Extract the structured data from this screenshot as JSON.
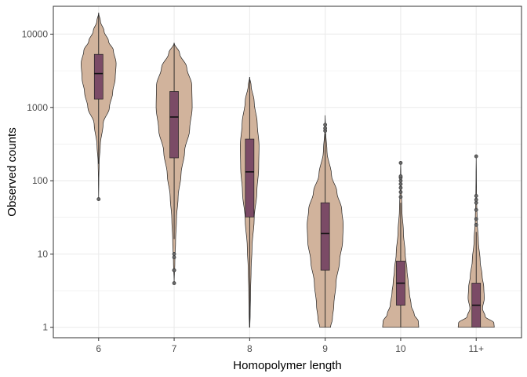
{
  "chart_data": {
    "type": "violin",
    "xlabel": "Homopolymer length",
    "ylabel": "Observed counts",
    "y_scale": "log10",
    "ylim": [
      0.72,
      24000
    ],
    "y_ticks": [
      1,
      10,
      100,
      1000,
      10000
    ],
    "y_tick_labels": [
      "1",
      "10",
      "100",
      "1000",
      "10000"
    ],
    "grid": true,
    "colors": {
      "violin_fill": "#d1b39c",
      "box_fill": "#7b4b66",
      "outline": "#222222",
      "grid": "#ebebeb",
      "panel_border": "#333333"
    },
    "categories": [
      "6",
      "7",
      "8",
      "9",
      "10",
      "11+"
    ],
    "groups": [
      {
        "label": "6",
        "violin": {
          "min": 56,
          "max": 19500,
          "profile": [
            [
              56,
              0.0
            ],
            [
              100,
              0.01
            ],
            [
              180,
              0.03
            ],
            [
              300,
              0.09
            ],
            [
              600,
              0.25
            ],
            [
              1000,
              0.6
            ],
            [
              1600,
              0.78
            ],
            [
              2500,
              0.92
            ],
            [
              4000,
              0.97
            ],
            [
              6000,
              0.82
            ],
            [
              8000,
              0.55
            ],
            [
              11000,
              0.3
            ],
            [
              15000,
              0.1
            ],
            [
              19500,
              0.0
            ]
          ]
        },
        "box": {
          "whisker_low": 170,
          "q1": 1300,
          "median": 2900,
          "q3": 5300,
          "whisker_high": 19500
        },
        "outliers": [
          56
        ]
      },
      {
        "label": "7",
        "violin": {
          "min": 4,
          "max": 7600,
          "profile": [
            [
              4,
              0.0
            ],
            [
              8,
              0.04
            ],
            [
              15,
              0.08
            ],
            [
              30,
              0.13
            ],
            [
              60,
              0.22
            ],
            [
              120,
              0.38
            ],
            [
              250,
              0.58
            ],
            [
              500,
              0.86
            ],
            [
              1000,
              1.0
            ],
            [
              2000,
              0.98
            ],
            [
              3500,
              0.7
            ],
            [
              5500,
              0.3
            ],
            [
              7600,
              0.0
            ]
          ]
        },
        "box": {
          "whisker_low": 16,
          "q1": 205,
          "median": 740,
          "q3": 1650,
          "whisker_high": 7600
        },
        "outliers": [
          4,
          6,
          6,
          9,
          10
        ]
      },
      {
        "label": "8",
        "violin": {
          "min": 1,
          "max": 2600,
          "profile": [
            [
              1,
              0.01
            ],
            [
              1.5,
              0.03
            ],
            [
              3,
              0.05
            ],
            [
              6,
              0.08
            ],
            [
              12,
              0.13
            ],
            [
              30,
              0.25
            ],
            [
              70,
              0.4
            ],
            [
              150,
              0.5
            ],
            [
              300,
              0.52
            ],
            [
              600,
              0.42
            ],
            [
              1200,
              0.25
            ],
            [
              2000,
              0.08
            ],
            [
              2600,
              0.0
            ]
          ]
        },
        "box": {
          "whisker_low": 1,
          "q1": 32,
          "median": 132,
          "q3": 370,
          "whisker_high": 2600
        },
        "outliers": []
      },
      {
        "label": "9",
        "violin": {
          "min": 1,
          "max": 780,
          "profile": [
            [
              1,
              0.3
            ],
            [
              1.3,
              0.4
            ],
            [
              2,
              0.48
            ],
            [
              4,
              0.6
            ],
            [
              8,
              0.8
            ],
            [
              15,
              0.97
            ],
            [
              25,
              1.0
            ],
            [
              40,
              0.92
            ],
            [
              70,
              0.65
            ],
            [
              120,
              0.35
            ],
            [
              250,
              0.1
            ],
            [
              500,
              0.02
            ],
            [
              780,
              0.0
            ]
          ]
        },
        "box": {
          "whisker_low": 1,
          "q1": 6,
          "median": 19,
          "q3": 50,
          "whisker_high": 440
        },
        "outliers": [
          480,
          520,
          580
        ]
      },
      {
        "label": "10",
        "violin": {
          "min": 1,
          "max": 175,
          "profile": [
            [
              1,
              1.0
            ],
            [
              1.2,
              0.98
            ],
            [
              1.5,
              0.75
            ],
            [
              2,
              0.58
            ],
            [
              3,
              0.48
            ],
            [
              4,
              0.42
            ],
            [
              6,
              0.35
            ],
            [
              10,
              0.25
            ],
            [
              20,
              0.15
            ],
            [
              40,
              0.07
            ],
            [
              80,
              0.03
            ],
            [
              130,
              0.01
            ],
            [
              175,
              0.0
            ]
          ]
        },
        "box": {
          "whisker_low": 1,
          "q1": 2,
          "median": 4,
          "q3": 8,
          "whisker_high": 50
        },
        "outliers": [
          60,
          70,
          80,
          90,
          100,
          110,
          115,
          175
        ]
      },
      {
        "label": "11+",
        "violin": {
          "min": 1,
          "max": 215,
          "profile": [
            [
              1,
              1.0
            ],
            [
              1.15,
              0.98
            ],
            [
              1.4,
              0.5
            ],
            [
              1.8,
              0.35
            ],
            [
              2.5,
              0.45
            ],
            [
              3.5,
              0.42
            ],
            [
              5,
              0.33
            ],
            [
              8,
              0.22
            ],
            [
              15,
              0.12
            ],
            [
              30,
              0.05
            ],
            [
              60,
              0.02
            ],
            [
              120,
              0.01
            ],
            [
              215,
              0.0
            ]
          ]
        },
        "box": {
          "whisker_low": 1,
          "q1": 1,
          "median": 2,
          "q3": 4,
          "whisker_high": 20
        },
        "outliers": [
          25,
          30,
          40,
          50,
          55,
          62,
          215
        ]
      }
    ]
  }
}
